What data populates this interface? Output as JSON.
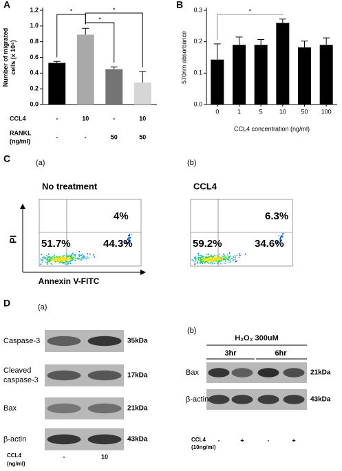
{
  "chart_data": [
    {
      "type": "bar",
      "panel": "A",
      "ylabel": [
        "Number of migrated",
        "cells (x 10⁴)"
      ],
      "values": [
        0.53,
        0.89,
        0.45,
        0.28
      ],
      "errors": [
        0.02,
        0.08,
        0.03,
        0.14
      ],
      "colors": [
        "#000000",
        "#a9a9a9",
        "#747474",
        "#d6d6d6"
      ],
      "ylim": [
        0,
        1.2
      ],
      "yticks": [
        {
          "value": 0,
          "label": "0.0"
        },
        0.2,
        0.4,
        0.6,
        0.8,
        {
          "value": 1,
          "label": "1.0"
        },
        1.2
      ],
      "condition_rows": [
        {
          "name": [
            "CCL4"
          ],
          "labels": [
            "-",
            "10",
            "-",
            "10"
          ]
        },
        {
          "name": [
            "RANKL",
            "(ng/ml)"
          ],
          "labels": [
            "-",
            "-",
            "50",
            "50"
          ]
        }
      ],
      "significance": [
        {
          "from": 0,
          "to": 1,
          "label": "*"
        },
        {
          "from": 1,
          "to": 2,
          "label": "*"
        },
        {
          "from": 1,
          "to": 3,
          "label": "*"
        }
      ]
    },
    {
      "type": "bar",
      "panel": "B",
      "ylabel": [
        "570nm absorbance"
      ],
      "xlabel": "CCL4 concentration (ng/ml)",
      "categories": [
        "0",
        "1",
        "5",
        "10",
        "50",
        "100"
      ],
      "values": [
        0.143,
        0.19,
        0.19,
        0.26,
        0.182,
        0.19
      ],
      "errors": [
        0.05,
        0.025,
        0.017,
        0.012,
        0.02,
        0.022
      ],
      "color": "#000000",
      "ylim": [
        0,
        0.3
      ],
      "yticks": [
        {
          "value": 0,
          "label": "0.0"
        },
        0.1,
        0.2,
        0.3
      ],
      "significance": [
        {
          "from": 0,
          "to": 3,
          "label": "*"
        }
      ]
    }
  ],
  "panel_c": {
    "letter": "C",
    "y_axis": "PI",
    "x_axis": "Annexin V-FITC",
    "plots": [
      {
        "tag": "(a)",
        "title": "No treatment",
        "upper_right": "4%",
        "lower_left": "51.7%",
        "lower_right": "44.3%"
      },
      {
        "tag": "(b)",
        "title": "CCL4",
        "upper_right": "6.3%",
        "lower_left": "59.2%",
        "lower_right": "34.6%"
      }
    ]
  },
  "panel_d": {
    "letter": "D",
    "blot_a": {
      "tag": "(a)",
      "rows": [
        {
          "name": [
            "Caspase-3"
          ],
          "size": "35kDa"
        },
        {
          "name": [
            "Cleaved",
            "caspase-3"
          ],
          "size": "17kDa"
        },
        {
          "name": [
            "Bax"
          ],
          "size": "21kDa"
        },
        {
          "name": [
            "β-actin"
          ],
          "size": "43kDa"
        }
      ],
      "treatment": [
        "CCL4",
        "(ng/ml)"
      ],
      "lanes": [
        "-",
        "10"
      ]
    },
    "blot_b": {
      "tag": "(b)",
      "header": "H₂O₂ 300uM",
      "groups": [
        "3hr",
        "6hr"
      ],
      "rows": [
        {
          "name": [
            "Bax"
          ],
          "size": "21kDa"
        },
        {
          "name": [
            "β-actin"
          ],
          "size": "43kDa"
        }
      ],
      "treatment": [
        "CCL4",
        "(10ng/ml)"
      ],
      "lanes": [
        "-",
        "+",
        "-",
        "+"
      ]
    }
  }
}
